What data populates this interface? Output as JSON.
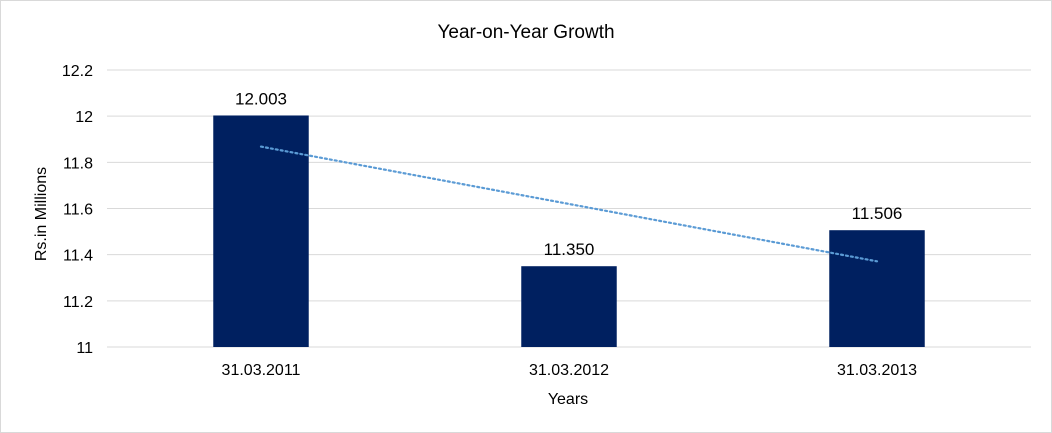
{
  "chart_data": {
    "type": "bar",
    "title": "Year-on-Year Growth",
    "xlabel": "Years",
    "ylabel": "Rs.in Millions",
    "categories": [
      "31.03.2011",
      "31.03.2012",
      "31.03.2013"
    ],
    "values": [
      12.003,
      11.35,
      11.506
    ],
    "data_labels": [
      "12.003",
      "11.350",
      "11.506"
    ],
    "ylim": [
      11,
      12.2
    ],
    "yticks": [
      "11",
      "11.2",
      "11.4",
      "11.6",
      "11.8",
      "12",
      "12.2"
    ],
    "grid": true,
    "legend": "none",
    "trendline": {
      "type": "linear",
      "style": "dotted",
      "color": "#5b9bd5"
    },
    "colors": {
      "bar": "#002060",
      "grid": "#d9d9d9",
      "axis": "#d9d9d9"
    }
  }
}
